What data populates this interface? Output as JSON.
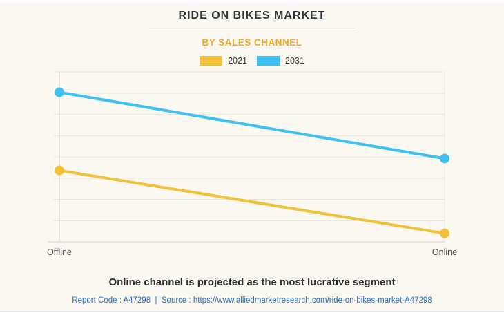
{
  "header": {
    "title": "RIDE ON BIKES MARKET",
    "subtitle": "BY SALES CHANNEL"
  },
  "chart_data": {
    "type": "line",
    "title": "RIDE ON BIKES MARKET",
    "subtitle": "BY SALES CHANNEL",
    "categories": [
      "Offline",
      "Online"
    ],
    "series": [
      {
        "name": "2021",
        "color": "#F2C139",
        "values": [
          42,
          5
        ]
      },
      {
        "name": "2031",
        "color": "#3EC1F0",
        "values": [
          88,
          49
        ]
      }
    ],
    "xlabel": "",
    "ylabel": "",
    "ylim": [
      0,
      100
    ],
    "y_axis_labels_visible": false,
    "y_gridline_count": 9,
    "grid": true,
    "legend_position": "top"
  },
  "caption": "Online channel is projected as the most lucrative segment",
  "footer": {
    "report_code": "Report Code : A47298",
    "separator": "  |  ",
    "source": "Source : https://www.alliedmarketresearch.com/ride-on-bikes-market-A47298"
  },
  "colors": {
    "background": "#FAF8F1",
    "series_2021": "#F2C139",
    "series_2031": "#3EC1F0",
    "subtitle_accent": "#F7A720",
    "footer_link": "#2B6FC6",
    "gridline": "#EAE6DB",
    "axis": "#D8D2C5",
    "axis_label": "#4A4A4A"
  }
}
